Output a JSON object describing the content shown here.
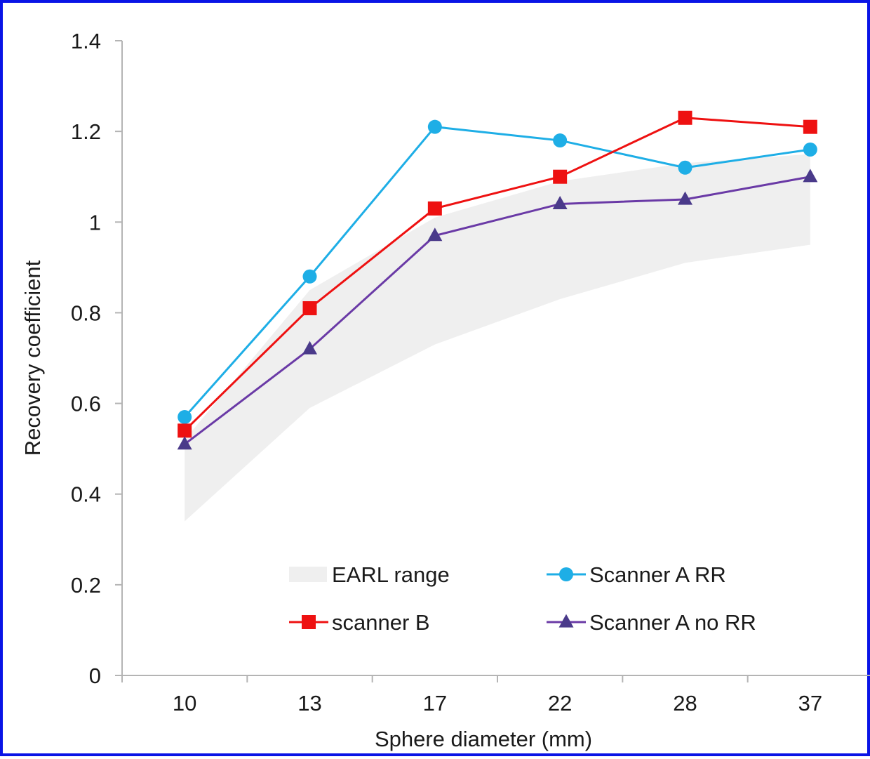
{
  "chart_data": {
    "type": "line",
    "title": "",
    "xlabel": "Sphere diameter (mm)",
    "ylabel": "Recovery coefficient",
    "categories": [
      "10",
      "13",
      "17",
      "22",
      "28",
      "37"
    ],
    "ylim": [
      0,
      1.4
    ],
    "yticks": [
      "0",
      "0.2",
      "0.4",
      "0.6",
      "0.8",
      "1",
      "1.2",
      "1.4"
    ],
    "grid": false,
    "legend_placement": "bottom-center, inside plot, two columns",
    "band": {
      "name": "EARL range",
      "lower": [
        0.34,
        0.59,
        0.73,
        0.83,
        0.91,
        0.95
      ],
      "upper": [
        0.52,
        0.85,
        1.01,
        1.09,
        1.13,
        1.15
      ],
      "color": "#efefef"
    },
    "series": [
      {
        "name": "Scanner A RR",
        "values": [
          0.57,
          0.88,
          1.21,
          1.18,
          1.12,
          1.16
        ],
        "color": "#1eaee6",
        "marker": "circle"
      },
      {
        "name": "scanner B",
        "values": [
          0.54,
          0.81,
          1.03,
          1.1,
          1.23,
          1.21
        ],
        "color": "#ee1111",
        "marker": "square"
      },
      {
        "name": "Scanner A no RR",
        "values": [
          0.51,
          0.72,
          0.97,
          1.04,
          1.05,
          1.1
        ],
        "color": "#6a3aa6",
        "marker_color": "#4a3a8a",
        "marker": "triangle"
      }
    ],
    "legend_order": [
      "EARL range",
      "Scanner A RR",
      "scanner B",
      "Scanner A no RR"
    ]
  }
}
